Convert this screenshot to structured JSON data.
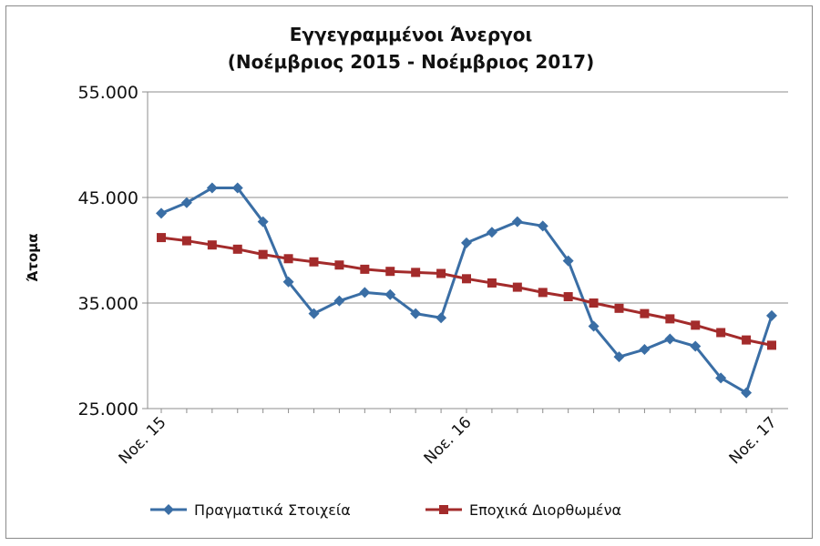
{
  "chart_data": {
    "type": "line",
    "title_line1": "Εγγεγραμμένοι Άνεργοι",
    "title_line2": "(Νοέμβριος 2015 - Νοέμβριος 2017)",
    "xlabel": "",
    "ylabel": "Άτομα",
    "ylim": [
      25000,
      55000
    ],
    "yticks": [
      25000,
      35000,
      45000,
      55000
    ],
    "ytick_labels": [
      "25.000",
      "35.000",
      "45.000",
      "55.000"
    ],
    "xtick_labels": [
      {
        "index": 0,
        "label": "Νοε. 15"
      },
      {
        "index": 12,
        "label": "Νοε. 16"
      },
      {
        "index": 24,
        "label": "Νοε. 17"
      }
    ],
    "grid": true,
    "legend_position": "bottom",
    "series": [
      {
        "name": "Πραγματικά Στοιχεία",
        "color": "#3a6ea5",
        "marker": "diamond",
        "values": [
          43500,
          44500,
          45900,
          45900,
          42700,
          37000,
          34000,
          35200,
          36000,
          35800,
          34000,
          33600,
          40700,
          41700,
          42700,
          42300,
          39000,
          32800,
          29900,
          30600,
          31600,
          30900,
          27900,
          26500,
          33800
        ]
      },
      {
        "name": "Εποχικά Διορθωμένα",
        "color": "#a32b2b",
        "marker": "square",
        "values": [
          41200,
          40900,
          40500,
          40100,
          39600,
          39200,
          38900,
          38600,
          38200,
          38000,
          37900,
          37800,
          37300,
          36900,
          36500,
          36000,
          35600,
          35000,
          34500,
          34000,
          33500,
          32900,
          32200,
          31500,
          31000
        ]
      }
    ]
  }
}
